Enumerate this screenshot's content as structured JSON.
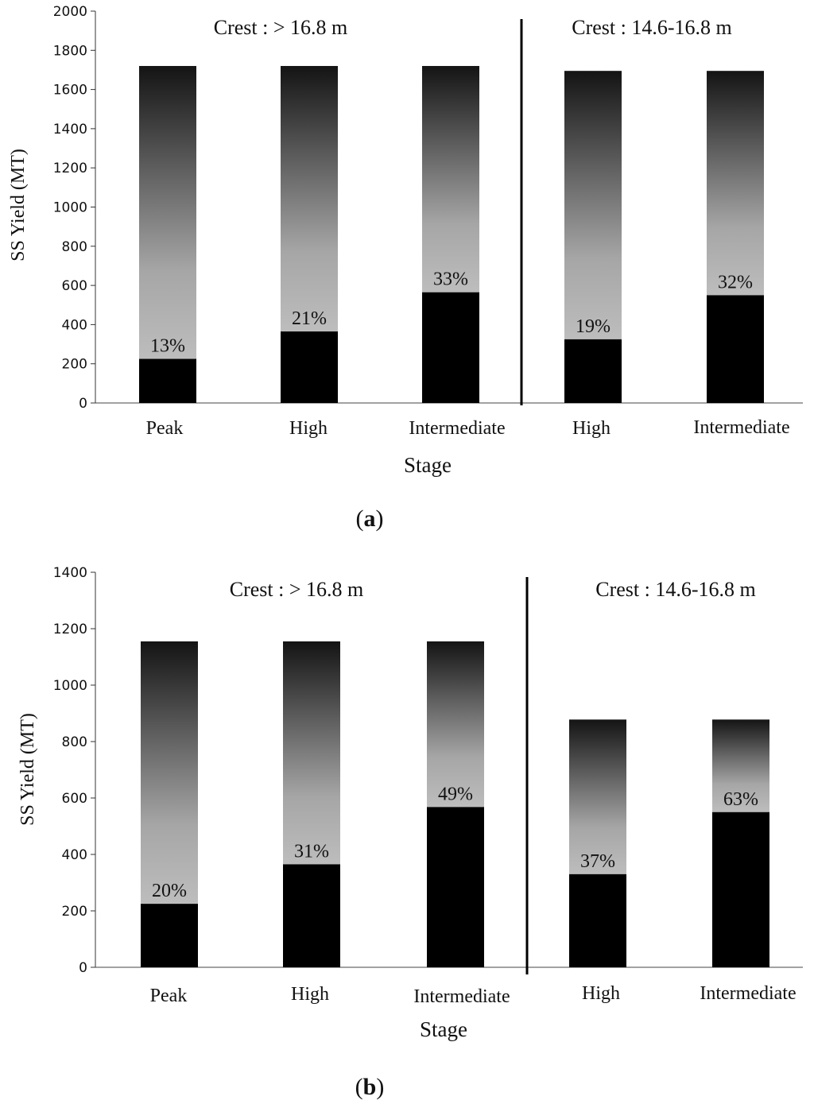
{
  "chart_data": [
    {
      "type": "bar",
      "panel_label": "a",
      "xlabel": "Stage",
      "ylabel": "SS Yield (MT)",
      "ylim": [
        0,
        2000
      ],
      "yticks": [
        0,
        200,
        400,
        600,
        800,
        1000,
        1200,
        1400,
        1600,
        1800,
        2000
      ],
      "groups": [
        {
          "title": "Crest : > 16.8 m",
          "bars": [
            {
              "category": "Peak",
              "total": 1720,
              "black": 225,
              "percent_label": "13%"
            },
            {
              "category": "High",
              "total": 1720,
              "black": 365,
              "percent_label": "21%"
            },
            {
              "category": "Intermediate",
              "total": 1720,
              "black": 565,
              "percent_label": "33%"
            }
          ]
        },
        {
          "title": "Crest : 14.6-16.8 m",
          "bars": [
            {
              "category": "High",
              "total": 1695,
              "black": 325,
              "percent_label": "19%"
            },
            {
              "category": "Intermediate",
              "total": 1695,
              "black": 550,
              "percent_label": "32%"
            }
          ]
        }
      ]
    },
    {
      "type": "bar",
      "panel_label": "b",
      "xlabel": "Stage",
      "ylabel": "SS Yield (MT)",
      "ylim": [
        0,
        1400
      ],
      "yticks": [
        0,
        200,
        400,
        600,
        800,
        1000,
        1200,
        1400
      ],
      "groups": [
        {
          "title": "Crest : > 16.8 m",
          "bars": [
            {
              "category": "Peak",
              "total": 1155,
              "black": 225,
              "percent_label": "20%"
            },
            {
              "category": "High",
              "total": 1155,
              "black": 365,
              "percent_label": "31%"
            },
            {
              "category": "Intermediate",
              "total": 1155,
              "black": 568,
              "percent_label": "49%"
            }
          ]
        },
        {
          "title": "Crest : 14.6-16.8 m",
          "bars": [
            {
              "category": "High",
              "total": 878,
              "black": 330,
              "percent_label": "37%"
            },
            {
              "category": "Intermediate",
              "total": 878,
              "black": 550,
              "percent_label": "63%"
            }
          ]
        }
      ]
    }
  ]
}
